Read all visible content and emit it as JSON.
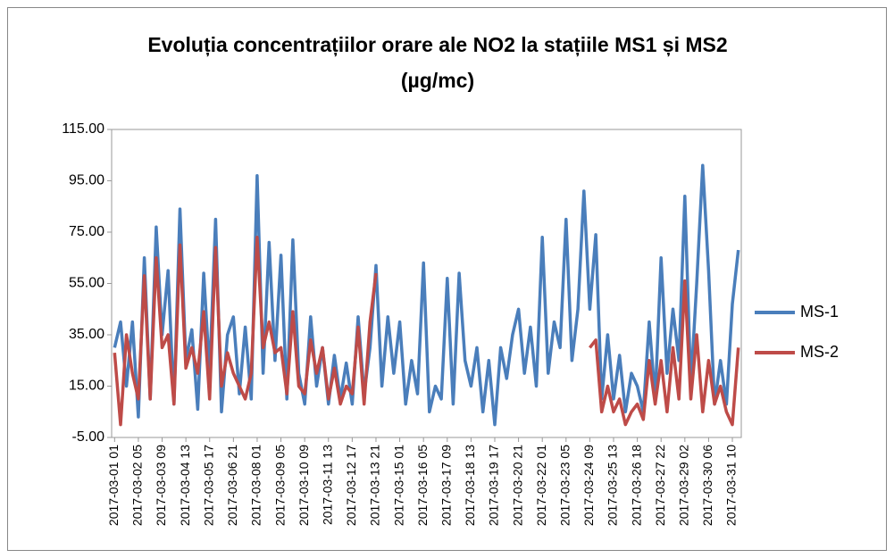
{
  "chart_data": {
    "type": "line",
    "title": "Evoluția concentrațiilor orare ale NO2 la stațiile MS1 și MS2 (µg/mc)",
    "categories": [
      "2017-03-01 01",
      null,
      null,
      null,
      "2017-03-02 05",
      null,
      null,
      null,
      "2017-03-03 09",
      null,
      null,
      null,
      "2017-03-04 13",
      null,
      null,
      null,
      "2017-03-05 17",
      null,
      null,
      null,
      "2017-03-06 21",
      null,
      null,
      null,
      "2017-03-08 01",
      null,
      null,
      null,
      "2017-03-09 05",
      null,
      null,
      null,
      "2017-03-10 09",
      null,
      null,
      null,
      "2017-03-11 13",
      null,
      null,
      null,
      "2017-03-12 17",
      null,
      null,
      null,
      "2017-03-13 21",
      null,
      null,
      null,
      "2017-03-15 01",
      null,
      null,
      null,
      "2017-03-16 05",
      null,
      null,
      null,
      "2017-03-17 09",
      null,
      null,
      null,
      "2017-03-18 13",
      null,
      null,
      null,
      "2017-03-19 17",
      null,
      null,
      null,
      "2017-03-20 21",
      null,
      null,
      null,
      "2017-03-22 01",
      null,
      null,
      null,
      "2017-03-23 05",
      null,
      null,
      null,
      "2017-03-24 09",
      null,
      null,
      null,
      "2017-03-25 13",
      null,
      null,
      null,
      "2017-03-26 18",
      null,
      null,
      null,
      "2017-03-27 22",
      null,
      null,
      null,
      "2017-03-29 02",
      null,
      null,
      null,
      "2017-03-30 06",
      null,
      null,
      null,
      "2017-03-31 10",
      null
    ],
    "series": [
      {
        "name": "MS-1",
        "color": "#4a7ebb",
        "values": [
          30,
          40,
          15,
          40,
          3,
          65,
          10,
          77,
          35,
          60,
          8,
          84,
          25,
          37,
          6,
          59,
          20,
          80,
          5,
          35,
          42,
          12,
          38,
          10,
          97,
          20,
          71,
          25,
          66,
          10,
          72,
          20,
          8,
          42,
          15,
          30,
          8,
          27,
          10,
          24,
          8,
          42,
          12,
          30,
          62,
          15,
          42,
          20,
          40,
          8,
          25,
          12,
          63,
          5,
          15,
          10,
          57,
          8,
          59,
          25,
          15,
          30,
          5,
          25,
          0,
          30,
          18,
          35,
          45,
          20,
          38,
          15,
          73,
          20,
          40,
          30,
          80,
          25,
          45,
          91,
          45,
          74,
          10,
          35,
          10,
          27,
          5,
          20,
          15,
          5,
          40,
          10,
          65,
          20,
          45,
          25,
          89,
          15,
          55,
          101,
          60,
          8,
          25,
          8,
          47,
          68
        ]
      },
      {
        "name": "MS-2",
        "color": "#be4b48",
        "values": [
          28,
          0,
          35,
          20,
          10,
          58,
          10,
          65,
          30,
          35,
          8,
          70,
          22,
          30,
          20,
          44,
          10,
          69,
          15,
          28,
          20,
          15,
          10,
          20,
          73,
          30,
          40,
          28,
          30,
          12,
          44,
          15,
          12,
          33,
          20,
          30,
          10,
          22,
          8,
          15,
          12,
          38,
          8,
          40,
          59,
          null,
          null,
          null,
          null,
          null,
          null,
          null,
          null,
          null,
          null,
          null,
          null,
          null,
          null,
          null,
          null,
          null,
          null,
          null,
          null,
          null,
          null,
          null,
          null,
          null,
          null,
          null,
          null,
          null,
          null,
          null,
          null,
          null,
          null,
          null,
          30,
          33,
          5,
          15,
          5,
          10,
          0,
          5,
          8,
          2,
          25,
          8,
          25,
          5,
          30,
          10,
          56,
          10,
          35,
          5,
          25,
          8,
          15,
          5,
          0,
          30
        ]
      }
    ],
    "ylim": [
      -5,
      115
    ],
    "yticks": [
      {
        "value": -5,
        "label": "-5.00"
      },
      {
        "value": 15,
        "label": "15.00"
      },
      {
        "value": 35,
        "label": "35.00"
      },
      {
        "value": 55,
        "label": "55.00"
      },
      {
        "value": 75,
        "label": "75.00"
      },
      {
        "value": 95,
        "label": "95.00"
      },
      {
        "value": 115,
        "label": "115.00"
      }
    ],
    "legend": "right"
  }
}
